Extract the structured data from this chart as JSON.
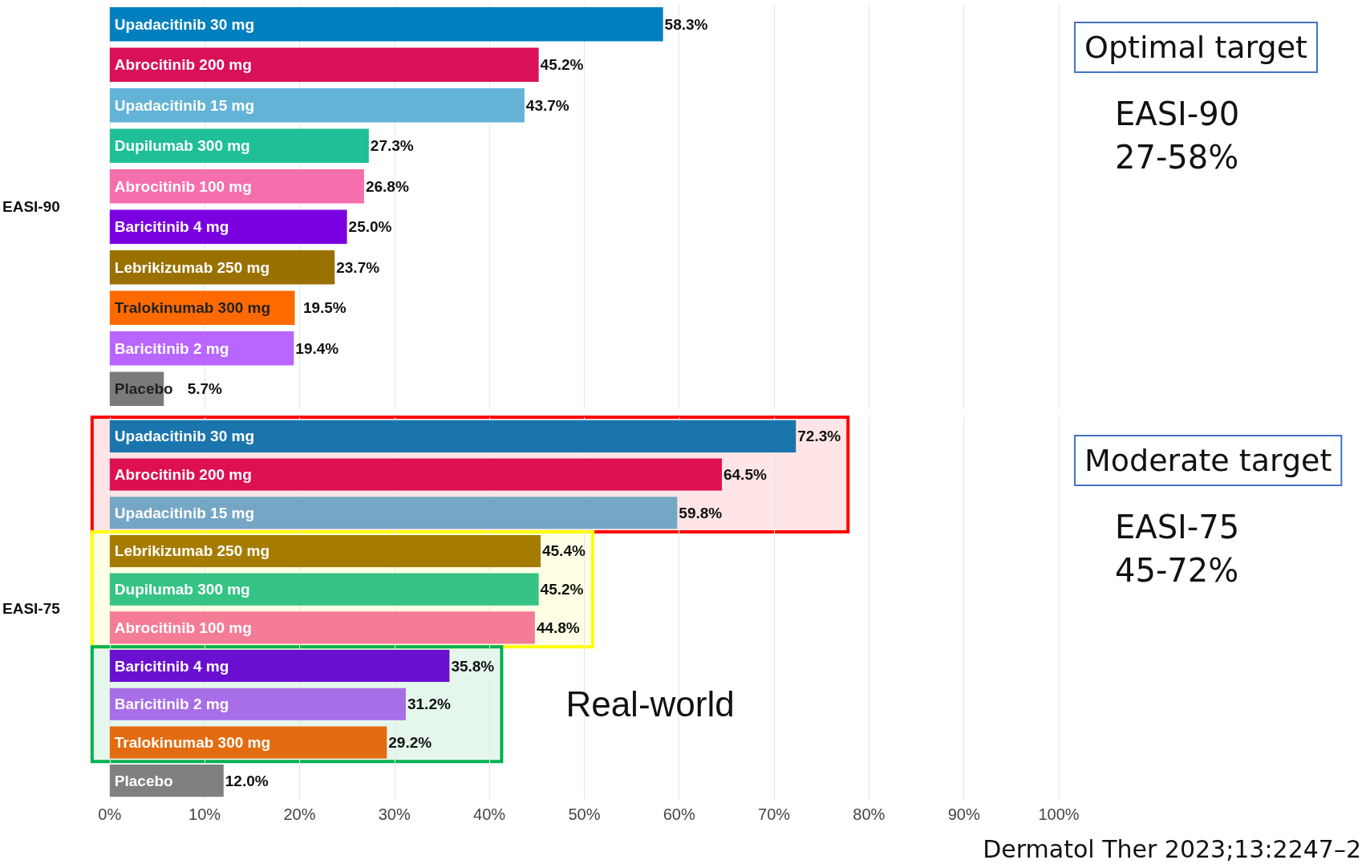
{
  "chart_data": [
    {
      "type": "bar",
      "orientation": "horizontal",
      "ylabel": "EASI-90",
      "categories": [
        "Upadacitinib 30 mg",
        "Abrocitinib 200 mg",
        "Upadacitinib 15 mg",
        "Dupilumab 300 mg",
        "Abrocitinib 100 mg",
        "Baricitinib 4 mg",
        "Lebrikizumab 250 mg",
        "Tralokinumab 300 mg",
        "Baricitinib 2 mg",
        "Placebo"
      ],
      "values": [
        58.3,
        45.2,
        43.7,
        27.3,
        26.8,
        25.0,
        23.7,
        19.5,
        19.4,
        5.7
      ],
      "value_labels": [
        "58.3%",
        "45.2%",
        "43.7%",
        "27.3%",
        "26.8%",
        "25.0%",
        "23.7%",
        "19.5%",
        "19.4%",
        "5.7%"
      ],
      "colors": [
        "#0080bf",
        "#d81159",
        "#63b3d6",
        "#1fbf98",
        "#f56fad",
        "#7b00e0",
        "#9a7000",
        "#ff6a00",
        "#b866ff",
        "#7a7a7a"
      ],
      "xlim": [
        0,
        100
      ],
      "xticks": [
        0,
        10,
        20,
        30,
        40,
        50,
        60,
        70,
        80,
        90,
        100
      ],
      "tick_labels": "y",
      "grid": "x",
      "annotations": [
        "Optimal target",
        "EASI-90\n27-58%"
      ]
    },
    {
      "type": "bar",
      "orientation": "horizontal",
      "ylabel": "EASI-75",
      "categories": [
        "Upadacitinib 30 mg",
        "Abrocitinib 200 mg",
        "Upadacitinib 15 mg",
        "Lebrikizumab 250 mg",
        "Dupilumab 300 mg",
        "Abrocitinib 100 mg",
        "Baricitinib 4 mg",
        "Baricitinib 2 mg",
        "Tralokinumab 300 mg",
        "Placebo"
      ],
      "values": [
        72.3,
        64.5,
        59.8,
        45.4,
        45.2,
        44.8,
        35.8,
        31.2,
        29.2,
        12.0
      ],
      "value_labels": [
        "72.3%",
        "64.5%",
        "59.8%",
        "45.4%",
        "45.2%",
        "44.8%",
        "35.8%",
        "31.2%",
        "29.2%",
        "12.0%"
      ],
      "colors": [
        "#1b75ad",
        "#dd1052",
        "#75a6c5",
        "#a67c00",
        "#35c486",
        "#f47c97",
        "#6b10d0",
        "#a86ee8",
        "#e36c10",
        "#808080"
      ],
      "xlim": [
        0,
        100
      ],
      "xticks": [
        {
          "value": 0,
          "label": "0%"
        },
        {
          "value": 10,
          "label": "10%"
        },
        {
          "value": 20,
          "label": "20%"
        },
        {
          "value": 30,
          "label": "30%"
        },
        {
          "value": 40,
          "label": "40%"
        },
        {
          "value": 50,
          "label": "50%"
        },
        {
          "value": 60,
          "label": "60%"
        },
        {
          "value": 70,
          "label": "70%"
        },
        {
          "value": 80,
          "label": "80%"
        },
        {
          "value": 90,
          "label": "90%"
        },
        {
          "value": 100,
          "label": "100%"
        }
      ],
      "grid": "x",
      "bands": [
        {
          "axis": "y",
          "from": "Upadacitinib 30 mg",
          "to": "Upadacitinib 15 mg",
          "color": "#ff0000"
        },
        {
          "axis": "y",
          "from": "Lebrikizumab 250 mg",
          "to": "Abrocitinib 100 mg",
          "color": "#ffff00"
        },
        {
          "axis": "y",
          "from": "Baricitinib 4 mg",
          "to": "Tralokinumab 300 mg",
          "color": "#00b050",
          "label": "Real-world"
        }
      ],
      "annotations": [
        "Moderate target",
        "EASI-75\n45-72%",
        "Dermatol Ther 2023;13:2247–2"
      ]
    }
  ]
}
